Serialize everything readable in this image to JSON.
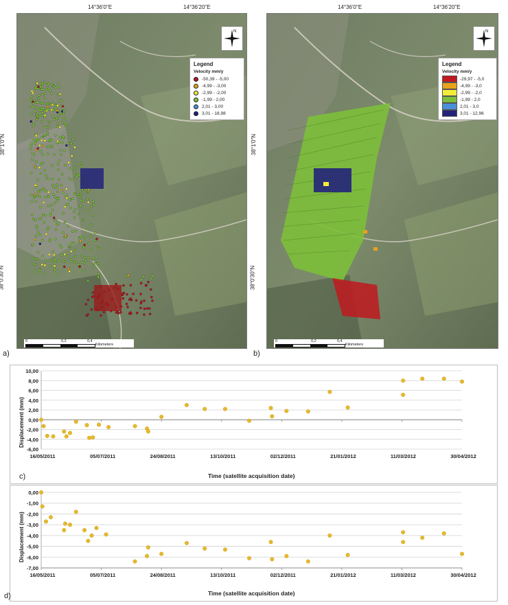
{
  "maps": {
    "coords_top": [
      "14°36'0\"E",
      "14°36'20\"E"
    ],
    "coords_left": [
      "38°1'0\"N",
      "38°0'30\"N"
    ],
    "north_label": "N",
    "scale": {
      "labels": [
        "0",
        "0,2",
        "0,4"
      ],
      "unit": "Kilometers"
    },
    "a": {
      "letter": "a)",
      "legend": {
        "title": "Legend",
        "subtitle": "Velocity mm/y",
        "items": [
          {
            "label": "-50,39 - -5,00",
            "color": "#b0171f"
          },
          {
            "label": "-4,99 - -3,00",
            "color": "#e8a31a"
          },
          {
            "label": "-2,99 - -2,00",
            "color": "#f3ec3a"
          },
          {
            "label": "-1,99 - 2,00",
            "color": "#7cbf3a"
          },
          {
            "label": "2,01 - 3,00",
            "color": "#4a90d9"
          },
          {
            "label": "3,01 - 18,98",
            "color": "#23237a"
          }
        ]
      }
    },
    "b": {
      "letter": "b)",
      "legend": {
        "title": "Legend",
        "subtitle": "Velocity mm/y",
        "items": [
          {
            "label": "-29,97 - -5,0",
            "color": "#c0191f"
          },
          {
            "label": "-4,99 - -3,0",
            "color": "#e8a31a"
          },
          {
            "label": "-2,99 - -2,0",
            "color": "#f3ec3a"
          },
          {
            "label": "-1,99 - 2,0",
            "color": "#7cbf3a"
          },
          {
            "label": "2,01 - 3,0",
            "color": "#4a90d9"
          },
          {
            "label": "3,01 - 12,96",
            "color": "#23237a"
          }
        ]
      }
    }
  },
  "chart_data": [
    {
      "panel": "c)",
      "type": "scatter",
      "ylabel": "Displacement (mm)",
      "xlabel": "Time (satellite acquisition date)",
      "xticks": [
        "16/05/2011",
        "05/07/2011",
        "24/08/2011",
        "13/10/2011",
        "02/12/2011",
        "21/01/2012",
        "11/03/2012",
        "30/04/2012"
      ],
      "yticks": [
        "10,00",
        "8,00",
        "6,00",
        "4,00",
        "2,00",
        "0,00",
        "-2,00",
        "-4,00",
        "-6,00"
      ],
      "ylim": [
        -6,
        10
      ],
      "grid": true,
      "marker_color": "#e6b92b",
      "points": [
        [
          "2011-05-16",
          0.0
        ],
        [
          "2011-05-18",
          -1.3
        ],
        [
          "2011-05-21",
          -3.3
        ],
        [
          "2011-05-26",
          -3.4
        ],
        [
          "2011-06-04",
          -2.4
        ],
        [
          "2011-06-06",
          -3.4
        ],
        [
          "2011-06-09",
          -2.7
        ],
        [
          "2011-06-14",
          -0.4
        ],
        [
          "2011-06-23",
          -1.1
        ],
        [
          "2011-06-25",
          -3.7
        ],
        [
          "2011-06-28",
          -3.6
        ],
        [
          "2011-07-03",
          -1.0
        ],
        [
          "2011-07-11",
          -1.5
        ],
        [
          "2011-08-02",
          -1.3
        ],
        [
          "2011-08-12",
          -1.8
        ],
        [
          "2011-08-13",
          -2.4
        ],
        [
          "2011-08-24",
          0.6
        ],
        [
          "2011-09-14",
          3.0
        ],
        [
          "2011-09-29",
          2.2
        ],
        [
          "2011-10-16",
          2.2
        ],
        [
          "2011-11-05",
          -0.2
        ],
        [
          "2011-11-23",
          2.4
        ],
        [
          "2011-11-24",
          0.7
        ],
        [
          "2011-12-06",
          1.8
        ],
        [
          "2011-12-24",
          1.7
        ],
        [
          "2012-01-11",
          5.7
        ],
        [
          "2012-01-26",
          2.5
        ],
        [
          "2012-03-12",
          8.0
        ],
        [
          "2012-03-12",
          5.1
        ],
        [
          "2012-03-28",
          8.4
        ],
        [
          "2012-04-15",
          8.4
        ],
        [
          "2012-04-30",
          7.8
        ]
      ]
    },
    {
      "panel": "d)",
      "type": "scatter",
      "ylabel": "Displacement (mm)",
      "xlabel": "Time (satellite acquisition date)",
      "xticks": [
        "16/05/2011",
        "05/07/2011",
        "24/08/2011",
        "13/10/2011",
        "02/12/2011",
        "21/01/2012",
        "11/03/2012",
        "30/04/2012"
      ],
      "yticks": [
        "0,00",
        "-1,00",
        "-2,00",
        "-3,00",
        "-4,00",
        "-5,00",
        "-6,00",
        "-7,00"
      ],
      "ylim": [
        -7,
        0
      ],
      "grid": true,
      "marker_color": "#e6b92b",
      "points": [
        [
          "2011-05-16",
          0.0
        ],
        [
          "2011-05-17",
          -1.3
        ],
        [
          "2011-05-20",
          -2.7
        ],
        [
          "2011-05-24",
          -2.3
        ],
        [
          "2011-06-04",
          -3.5
        ],
        [
          "2011-06-05",
          -2.9
        ],
        [
          "2011-06-09",
          -3.0
        ],
        [
          "2011-06-14",
          -1.8
        ],
        [
          "2011-06-21",
          -3.5
        ],
        [
          "2011-06-24",
          -4.5
        ],
        [
          "2011-06-27",
          -4.0
        ],
        [
          "2011-07-01",
          -3.3
        ],
        [
          "2011-07-09",
          -3.9
        ],
        [
          "2011-08-02",
          -6.4
        ],
        [
          "2011-08-12",
          -5.9
        ],
        [
          "2011-08-13",
          -5.1
        ],
        [
          "2011-08-24",
          -5.7
        ],
        [
          "2011-09-14",
          -4.7
        ],
        [
          "2011-09-29",
          -5.2
        ],
        [
          "2011-10-16",
          -5.3
        ],
        [
          "2011-11-05",
          -6.1
        ],
        [
          "2011-11-23",
          -4.6
        ],
        [
          "2011-11-24",
          -6.2
        ],
        [
          "2011-12-06",
          -5.9
        ],
        [
          "2011-12-24",
          -6.4
        ],
        [
          "2012-01-11",
          -4.0
        ],
        [
          "2012-01-26",
          -5.8
        ],
        [
          "2012-03-12",
          -3.7
        ],
        [
          "2012-03-12",
          -4.6
        ],
        [
          "2012-03-28",
          -4.2
        ],
        [
          "2012-04-15",
          -3.8
        ],
        [
          "2012-04-30",
          -5.7
        ]
      ]
    }
  ]
}
